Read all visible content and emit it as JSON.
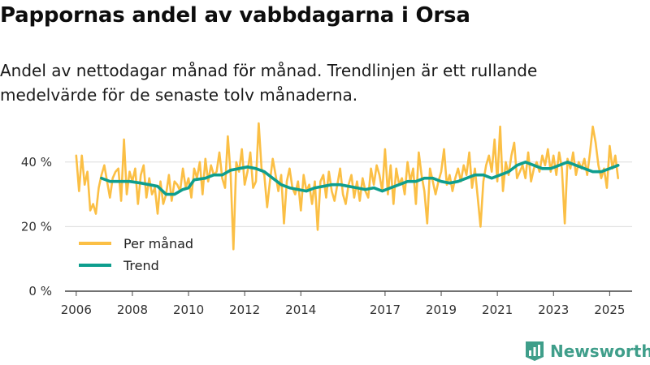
{
  "header": {
    "title": "Pappornas andel av vabbdagarna i Orsa",
    "subtitle": "Andel av nettodagar månad för månad. Trendlinjen är ett rullande medelvärde för de senaste tolv månaderna."
  },
  "brand": {
    "name": "Newsworthy",
    "icon": "newsworthy-logo-icon"
  },
  "colors": {
    "monthly": "#fbbf45",
    "trend": "#0e9e8e",
    "grid": "#dcdcdc",
    "axis": "#444444"
  },
  "chart_data": {
    "type": "line",
    "title": "Pappornas andel av vabbdagarna i Orsa",
    "xlabel": "",
    "ylabel": "",
    "xlim": [
      2005.6,
      2025.8
    ],
    "ylim": [
      0,
      50
    ],
    "y_ticks": [
      0,
      20,
      40
    ],
    "y_tick_labels": [
      "0 %",
      "20 %",
      "40 %"
    ],
    "x_ticks": [
      2006,
      2008,
      2010,
      2012,
      2014,
      2017,
      2019,
      2021,
      2023,
      2025
    ],
    "x_tick_labels": [
      "2006",
      "2008",
      "2010",
      "2012",
      "2014",
      "2017",
      "2019",
      "2021",
      "2023",
      "2025"
    ],
    "grid": true,
    "legend_position": "bottom-left",
    "series": [
      {
        "name": "Per månad",
        "points": [
          [
            2006.0,
            42
          ],
          [
            2006.1,
            31
          ],
          [
            2006.2,
            42
          ],
          [
            2006.3,
            33
          ],
          [
            2006.4,
            37
          ],
          [
            2006.5,
            25
          ],
          [
            2006.6,
            27
          ],
          [
            2006.7,
            24
          ],
          [
            2006.8,
            32
          ],
          [
            2006.9,
            36
          ],
          [
            2007.0,
            39
          ],
          [
            2007.1,
            34
          ],
          [
            2007.2,
            29
          ],
          [
            2007.3,
            35
          ],
          [
            2007.4,
            37
          ],
          [
            2007.5,
            38
          ],
          [
            2007.6,
            28
          ],
          [
            2007.7,
            47
          ],
          [
            2007.8,
            30
          ],
          [
            2007.9,
            37
          ],
          [
            2008.0,
            34
          ],
          [
            2008.1,
            38
          ],
          [
            2008.2,
            27
          ],
          [
            2008.3,
            36
          ],
          [
            2008.4,
            39
          ],
          [
            2008.5,
            29
          ],
          [
            2008.6,
            35
          ],
          [
            2008.7,
            30
          ],
          [
            2008.8,
            32
          ],
          [
            2008.9,
            24
          ],
          [
            2009.0,
            34
          ],
          [
            2009.1,
            27
          ],
          [
            2009.2,
            30
          ],
          [
            2009.3,
            36
          ],
          [
            2009.4,
            28
          ],
          [
            2009.5,
            34
          ],
          [
            2009.6,
            33
          ],
          [
            2009.7,
            31
          ],
          [
            2009.8,
            38
          ],
          [
            2009.9,
            32
          ],
          [
            2010.0,
            35
          ],
          [
            2010.1,
            29
          ],
          [
            2010.2,
            38
          ],
          [
            2010.3,
            35
          ],
          [
            2010.4,
            40
          ],
          [
            2010.5,
            30
          ],
          [
            2010.6,
            41
          ],
          [
            2010.7,
            34
          ],
          [
            2010.8,
            39
          ],
          [
            2010.9,
            36
          ],
          [
            2011.0,
            37
          ],
          [
            2011.1,
            43
          ],
          [
            2011.2,
            35
          ],
          [
            2011.3,
            32
          ],
          [
            2011.4,
            48
          ],
          [
            2011.5,
            36
          ],
          [
            2011.6,
            13
          ],
          [
            2011.7,
            40
          ],
          [
            2011.8,
            37
          ],
          [
            2011.9,
            44
          ],
          [
            2012.0,
            33
          ],
          [
            2012.1,
            37
          ],
          [
            2012.2,
            43
          ],
          [
            2012.3,
            32
          ],
          [
            2012.4,
            34
          ],
          [
            2012.5,
            52
          ],
          [
            2012.6,
            38
          ],
          [
            2012.7,
            36
          ],
          [
            2012.8,
            26
          ],
          [
            2012.9,
            34
          ],
          [
            2013.0,
            41
          ],
          [
            2013.1,
            36
          ],
          [
            2013.2,
            31
          ],
          [
            2013.3,
            36
          ],
          [
            2013.4,
            21
          ],
          [
            2013.5,
            34
          ],
          [
            2013.6,
            38
          ],
          [
            2013.7,
            32
          ],
          [
            2013.8,
            30
          ],
          [
            2013.9,
            34
          ],
          [
            2014.0,
            25
          ],
          [
            2014.1,
            36
          ],
          [
            2014.2,
            31
          ],
          [
            2014.3,
            33
          ],
          [
            2014.4,
            27
          ],
          [
            2014.5,
            34
          ],
          [
            2014.6,
            19
          ],
          [
            2014.7,
            34
          ],
          [
            2014.8,
            36
          ],
          [
            2014.9,
            29
          ],
          [
            2015.0,
            37
          ],
          [
            2015.1,
            31
          ],
          [
            2015.2,
            28
          ],
          [
            2015.3,
            33
          ],
          [
            2015.4,
            38
          ],
          [
            2015.5,
            30
          ],
          [
            2015.6,
            27
          ],
          [
            2015.7,
            33
          ],
          [
            2015.8,
            36
          ],
          [
            2015.9,
            29
          ],
          [
            2016.0,
            34
          ],
          [
            2016.1,
            28
          ],
          [
            2016.2,
            35
          ],
          [
            2016.3,
            31
          ],
          [
            2016.4,
            29
          ],
          [
            2016.5,
            38
          ],
          [
            2016.6,
            33
          ],
          [
            2016.7,
            39
          ],
          [
            2016.8,
            36
          ],
          [
            2016.9,
            31
          ],
          [
            2017.0,
            44
          ],
          [
            2017.1,
            30
          ],
          [
            2017.2,
            39
          ],
          [
            2017.3,
            27
          ],
          [
            2017.4,
            38
          ],
          [
            2017.5,
            33
          ],
          [
            2017.6,
            35
          ],
          [
            2017.7,
            30
          ],
          [
            2017.8,
            40
          ],
          [
            2017.9,
            34
          ],
          [
            2018.0,
            38
          ],
          [
            2018.1,
            27
          ],
          [
            2018.2,
            43
          ],
          [
            2018.3,
            36
          ],
          [
            2018.4,
            31
          ],
          [
            2018.5,
            21
          ],
          [
            2018.6,
            38
          ],
          [
            2018.7,
            34
          ],
          [
            2018.8,
            30
          ],
          [
            2018.9,
            34
          ],
          [
            2019.0,
            37
          ],
          [
            2019.1,
            44
          ],
          [
            2019.2,
            33
          ],
          [
            2019.3,
            36
          ],
          [
            2019.4,
            31
          ],
          [
            2019.5,
            35
          ],
          [
            2019.6,
            38
          ],
          [
            2019.7,
            34
          ],
          [
            2019.8,
            39
          ],
          [
            2019.9,
            36
          ],
          [
            2020.0,
            43
          ],
          [
            2020.1,
            32
          ],
          [
            2020.2,
            38
          ],
          [
            2020.3,
            29
          ],
          [
            2020.4,
            20
          ],
          [
            2020.5,
            34
          ],
          [
            2020.6,
            39
          ],
          [
            2020.7,
            42
          ],
          [
            2020.8,
            37
          ],
          [
            2020.9,
            47
          ],
          [
            2021.0,
            34
          ],
          [
            2021.1,
            51
          ],
          [
            2021.2,
            31
          ],
          [
            2021.3,
            40
          ],
          [
            2021.4,
            36
          ],
          [
            2021.5,
            42
          ],
          [
            2021.6,
            46
          ],
          [
            2021.7,
            35
          ],
          [
            2021.8,
            37
          ],
          [
            2021.9,
            39
          ],
          [
            2022.0,
            35
          ],
          [
            2022.1,
            43
          ],
          [
            2022.2,
            34
          ],
          [
            2022.3,
            38
          ],
          [
            2022.4,
            40
          ],
          [
            2022.5,
            37
          ],
          [
            2022.6,
            42
          ],
          [
            2022.7,
            39
          ],
          [
            2022.8,
            44
          ],
          [
            2022.9,
            37
          ],
          [
            2023.0,
            42
          ],
          [
            2023.1,
            36
          ],
          [
            2023.2,
            43
          ],
          [
            2023.3,
            38
          ],
          [
            2023.4,
            21
          ],
          [
            2023.5,
            41
          ],
          [
            2023.6,
            38
          ],
          [
            2023.7,
            43
          ],
          [
            2023.8,
            36
          ],
          [
            2023.9,
            40
          ],
          [
            2024.0,
            38
          ],
          [
            2024.1,
            41
          ],
          [
            2024.2,
            36
          ],
          [
            2024.3,
            43
          ],
          [
            2024.4,
            51
          ],
          [
            2024.5,
            46
          ],
          [
            2024.6,
            39
          ],
          [
            2024.7,
            35
          ],
          [
            2024.8,
            38
          ],
          [
            2024.9,
            32
          ],
          [
            2025.0,
            45
          ],
          [
            2025.1,
            38
          ],
          [
            2025.2,
            42
          ],
          [
            2025.3,
            35
          ]
        ]
      },
      {
        "name": "Trend",
        "points": [
          [
            2006.9,
            35
          ],
          [
            2007.2,
            34
          ],
          [
            2007.6,
            34
          ],
          [
            2007.9,
            34
          ],
          [
            2008.3,
            33.5
          ],
          [
            2008.6,
            33
          ],
          [
            2008.9,
            32.5
          ],
          [
            2009.2,
            30
          ],
          [
            2009.5,
            30
          ],
          [
            2009.8,
            31.5
          ],
          [
            2010.0,
            32
          ],
          [
            2010.2,
            34.5
          ],
          [
            2010.6,
            35
          ],
          [
            2010.9,
            36
          ],
          [
            2011.2,
            36
          ],
          [
            2011.5,
            37.5
          ],
          [
            2011.8,
            38
          ],
          [
            2012.1,
            38.5
          ],
          [
            2012.4,
            38
          ],
          [
            2012.7,
            37
          ],
          [
            2013.0,
            35
          ],
          [
            2013.3,
            33
          ],
          [
            2013.6,
            32
          ],
          [
            2013.9,
            31.5
          ],
          [
            2014.2,
            31
          ],
          [
            2014.5,
            32
          ],
          [
            2014.8,
            32.5
          ],
          [
            2015.1,
            33
          ],
          [
            2015.4,
            33
          ],
          [
            2015.7,
            32.5
          ],
          [
            2016.0,
            32
          ],
          [
            2016.3,
            31.5
          ],
          [
            2016.6,
            32
          ],
          [
            2016.9,
            31
          ],
          [
            2017.2,
            32
          ],
          [
            2017.5,
            33
          ],
          [
            2017.8,
            34
          ],
          [
            2018.1,
            34
          ],
          [
            2018.4,
            35
          ],
          [
            2018.7,
            35
          ],
          [
            2019.0,
            34
          ],
          [
            2019.3,
            33.5
          ],
          [
            2019.6,
            34
          ],
          [
            2019.9,
            35
          ],
          [
            2020.2,
            36
          ],
          [
            2020.5,
            36
          ],
          [
            2020.8,
            35
          ],
          [
            2021.1,
            36
          ],
          [
            2021.4,
            37
          ],
          [
            2021.7,
            39
          ],
          [
            2022.0,
            40
          ],
          [
            2022.3,
            39
          ],
          [
            2022.6,
            38
          ],
          [
            2022.9,
            38
          ],
          [
            2023.2,
            39
          ],
          [
            2023.5,
            40
          ],
          [
            2023.8,
            39
          ],
          [
            2024.1,
            38
          ],
          [
            2024.4,
            37
          ],
          [
            2024.7,
            37
          ],
          [
            2025.0,
            38
          ],
          [
            2025.3,
            39
          ]
        ]
      }
    ]
  }
}
